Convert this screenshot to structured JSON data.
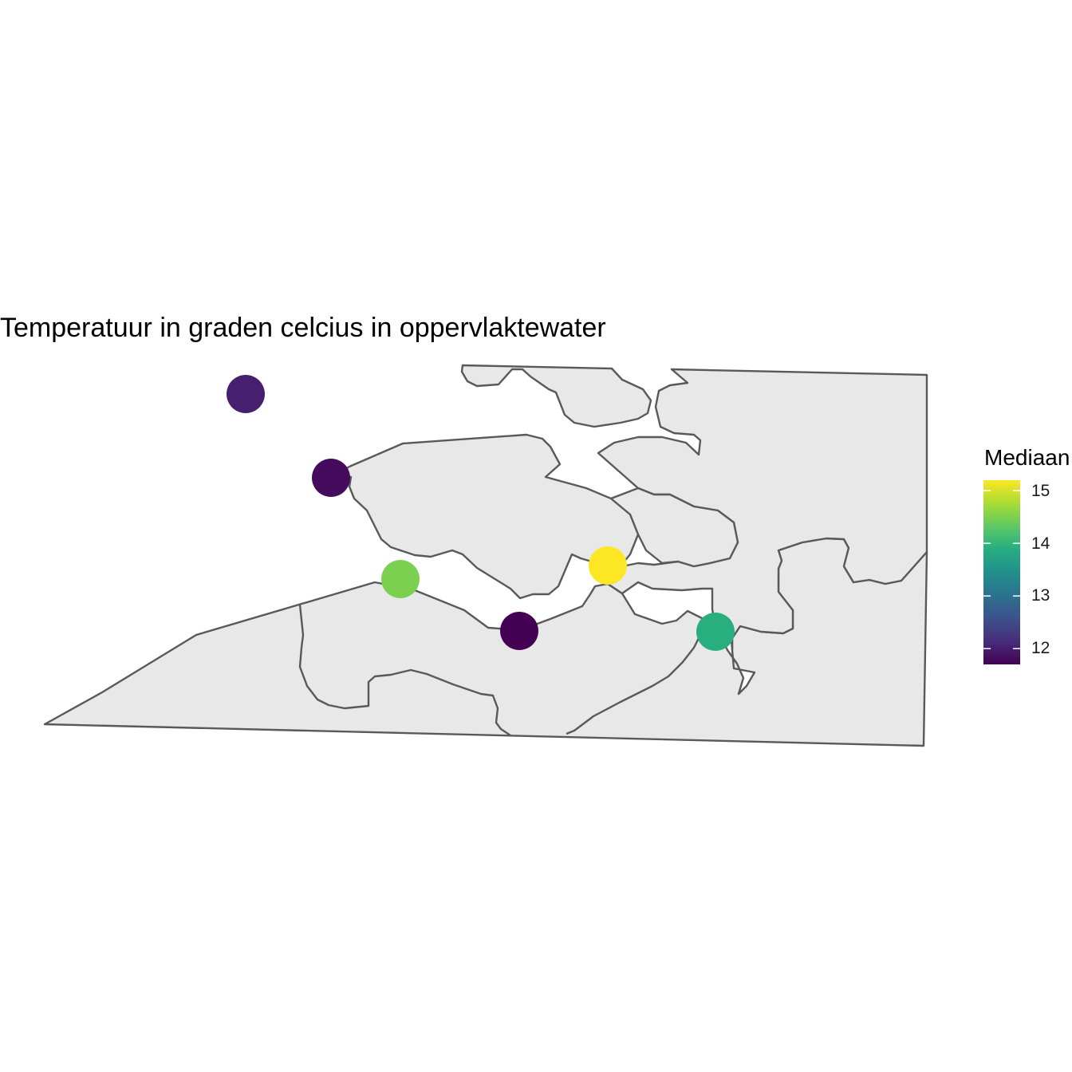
{
  "title": "Temperatuur in graden celcius in oppervlaktewater",
  "legend": {
    "title": "Mediaan",
    "min": 11.7,
    "max": 15.2,
    "ticks": [
      {
        "value": 15,
        "label": "15"
      },
      {
        "value": 14,
        "label": "14"
      },
      {
        "value": 13,
        "label": "13"
      },
      {
        "value": 12,
        "label": "12"
      }
    ],
    "palette": [
      "#440154",
      "#472D7B",
      "#3B528B",
      "#2C728E",
      "#21908C",
      "#27AD81",
      "#5DC863",
      "#AADC32",
      "#FDE725"
    ]
  },
  "map": {
    "land_fill": "#E8E8E8",
    "border_color": "#595959"
  },
  "stations": [
    {
      "id": "station-1",
      "median": 12.0
    },
    {
      "id": "station-2",
      "median": 11.8
    },
    {
      "id": "station-3",
      "median": 14.5
    },
    {
      "id": "station-4",
      "median": 11.7
    },
    {
      "id": "station-5",
      "median": 15.2
    },
    {
      "id": "station-6",
      "median": 13.9
    }
  ]
}
